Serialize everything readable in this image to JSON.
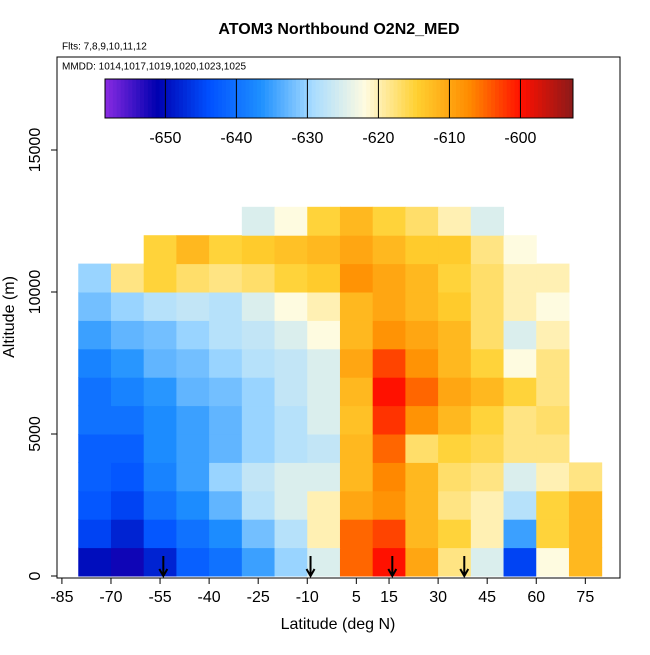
{
  "chart_data": {
    "type": "heatmap",
    "title": "ATOM3 Northbound O2N2_MED",
    "subtitle": "Flts: 7,8,9,10,11,12",
    "annotation": "MMDD: 1014,1017,1019,1020,1023,1025",
    "x_label": "Latitude (deg N)",
    "y_label": "Altitude (m)",
    "xlim": [
      -86.5,
      85.6
    ],
    "xticks": [
      -85,
      -70,
      -55,
      -40,
      -25,
      -10,
      5,
      15,
      30,
      45,
      60,
      75
    ],
    "ylim": [
      -70,
      18275
    ],
    "yticks": [
      0,
      5000,
      10000,
      15000
    ],
    "x_edges": [
      -80,
      -70,
      -60,
      -50,
      -40,
      -30,
      -20,
      -10,
      0,
      10,
      20,
      30,
      40,
      50,
      60,
      70,
      80
    ],
    "y_edges": [
      0,
      1000,
      2000,
      3000,
      4000,
      5000,
      6000,
      7000,
      8000,
      9000,
      10000,
      11000,
      12000,
      13000
    ],
    "z": [
      [
        -650,
        -652,
        -648,
        -642,
        -640,
        -635,
        -630,
        -625,
        -605,
        -600,
        -610,
        -618,
        -625,
        -645,
        -622,
        -612
      ],
      [
        -645,
        -648,
        -643,
        -640,
        -637,
        -632,
        -628,
        -620,
        -605,
        -603,
        -612,
        -615,
        -620,
        -635,
        -615,
        -612
      ],
      [
        -643,
        -645,
        -640,
        -637,
        -633,
        -628,
        -625,
        -620,
        -610,
        -608,
        -612,
        -618,
        -620,
        -628,
        -615,
        -612
      ],
      [
        -642,
        -643,
        -638,
        -635,
        -630,
        -627,
        -625,
        -625,
        -612,
        -607,
        -612,
        -617,
        -618,
        -625,
        -620,
        -618
      ],
      [
        -642,
        -642,
        -637,
        -635,
        -633,
        -630,
        -628,
        -627,
        -612,
        -605,
        -617,
        -615,
        -616,
        -618,
        -618,
        null
      ],
      [
        -640,
        -640,
        -637,
        -635,
        -633,
        -630,
        -628,
        -625,
        -613,
        -602,
        -608,
        -612,
        -615,
        -618,
        -617,
        null
      ],
      [
        -640,
        -638,
        -636,
        -633,
        -632,
        -630,
        -627,
        -625,
        -612,
        -600,
        -605,
        -610,
        -612,
        -615,
        -618,
        null
      ],
      [
        -638,
        -636,
        -633,
        -632,
        -630,
        -628,
        -627,
        -625,
        -610,
        -603,
        -608,
        -612,
        -615,
        -622,
        -618,
        null
      ],
      [
        -635,
        -633,
        -632,
        -630,
        -628,
        -627,
        -625,
        -622,
        -612,
        -608,
        -610,
        -612,
        -617,
        -625,
        -620,
        null
      ],
      [
        -632,
        -630,
        -628,
        -627,
        -628,
        -625,
        -622,
        -620,
        -612,
        -610,
        -612,
        -614,
        -617,
        -620,
        -622,
        null
      ],
      [
        -630,
        -618,
        -615,
        -617,
        -618,
        -617,
        -615,
        -614,
        -608,
        -610,
        -612,
        -615,
        -617,
        -620,
        -620,
        null
      ],
      [
        null,
        null,
        -615,
        -612,
        -615,
        -614,
        -613,
        -612,
        -610,
        -612,
        -614,
        -614,
        -618,
        -622,
        null,
        null
      ],
      [
        null,
        null,
        null,
        null,
        null,
        -625,
        -622,
        -615,
        -612,
        -615,
        -617,
        -620,
        -625,
        null,
        null,
        null
      ]
    ],
    "colorbar": {
      "lim": [
        -658.5,
        -592.6
      ],
      "ticks": [
        -650,
        -640,
        -630,
        -620,
        -610,
        -600
      ],
      "colors": [
        "#8a2be2",
        "#0000b0",
        "#0050ff",
        "#1e90ff",
        "#a8dcff",
        "#fffbe0",
        "#ffd030",
        "#ff8c00",
        "#ff1000",
        "#8b1a1a"
      ]
    },
    "markers_x": [
      -54,
      -9,
      16,
      38
    ]
  }
}
